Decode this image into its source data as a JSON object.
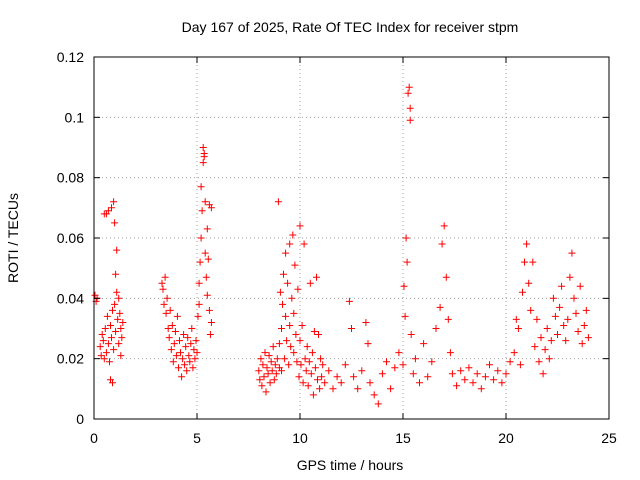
{
  "chart_data": {
    "type": "scatter",
    "title": "Day 167 of 2025, Rate Of TEC Index for receiver stpm",
    "xlabel": "GPS time / hours",
    "ylabel": "ROTI / TECUs",
    "xlim": [
      0,
      25
    ],
    "ylim": [
      0,
      0.12
    ],
    "x_ticks": [
      0,
      5,
      10,
      15,
      20,
      25
    ],
    "x_tick_labels": [
      "0",
      "5",
      "10",
      "15",
      "20",
      "25"
    ],
    "y_ticks": [
      0,
      0.02,
      0.04,
      0.06,
      0.08,
      0.1,
      0.12
    ],
    "y_tick_labels": [
      "0",
      "0.02",
      "0.04",
      "0.06",
      "0.08",
      "0.1",
      "0.12"
    ],
    "grid": true,
    "marker": "plus",
    "series_color": "#ff0000",
    "series": [
      {
        "name": "ROTI",
        "points": [
          [
            0.05,
            0.041
          ],
          [
            0.1,
            0.039
          ],
          [
            0.15,
            0.04
          ],
          [
            0.3,
            0.024
          ],
          [
            0.35,
            0.021
          ],
          [
            0.4,
            0.028
          ],
          [
            0.45,
            0.026
          ],
          [
            0.5,
            0.02
          ],
          [
            0.5,
            0.068
          ],
          [
            0.55,
            0.03
          ],
          [
            0.6,
            0.022
          ],
          [
            0.6,
            0.068
          ],
          [
            0.65,
            0.034
          ],
          [
            0.7,
            0.025
          ],
          [
            0.7,
            0.069
          ],
          [
            0.75,
            0.019
          ],
          [
            0.8,
            0.031
          ],
          [
            0.8,
            0.013
          ],
          [
            0.85,
            0.027
          ],
          [
            0.85,
            0.07
          ],
          [
            0.9,
            0.036
          ],
          [
            0.9,
            0.012
          ],
          [
            0.95,
            0.023
          ],
          [
            0.95,
            0.072
          ],
          [
            1.0,
            0.038
          ],
          [
            1.0,
            0.065
          ],
          [
            1.05,
            0.029
          ],
          [
            1.05,
            0.048
          ],
          [
            1.1,
            0.042
          ],
          [
            1.1,
            0.056
          ],
          [
            1.15,
            0.033
          ],
          [
            1.2,
            0.025
          ],
          [
            1.2,
            0.04
          ],
          [
            1.25,
            0.035
          ],
          [
            1.3,
            0.03
          ],
          [
            1.3,
            0.021
          ],
          [
            1.35,
            0.027
          ],
          [
            1.4,
            0.032
          ],
          [
            3.3,
            0.045
          ],
          [
            3.35,
            0.043
          ],
          [
            3.4,
            0.038
          ],
          [
            3.45,
            0.047
          ],
          [
            3.5,
            0.035
          ],
          [
            3.55,
            0.04
          ],
          [
            3.6,
            0.03
          ],
          [
            3.65,
            0.027
          ],
          [
            3.7,
            0.036
          ],
          [
            3.75,
            0.023
          ],
          [
            3.8,
            0.031
          ],
          [
            3.85,
            0.019
          ],
          [
            3.9,
            0.025
          ],
          [
            3.95,
            0.029
          ],
          [
            4.0,
            0.021
          ],
          [
            4.05,
            0.034
          ],
          [
            4.1,
            0.017
          ],
          [
            4.15,
            0.026
          ],
          [
            4.2,
            0.022
          ],
          [
            4.25,
            0.014
          ],
          [
            4.3,
            0.02
          ],
          [
            4.35,
            0.028
          ],
          [
            4.4,
            0.018
          ],
          [
            4.45,
            0.024
          ],
          [
            4.5,
            0.016
          ],
          [
            4.55,
            0.027
          ],
          [
            4.6,
            0.021
          ],
          [
            4.65,
            0.019
          ],
          [
            4.7,
            0.025
          ],
          [
            4.75,
            0.03
          ],
          [
            4.8,
            0.017
          ],
          [
            4.85,
            0.023
          ],
          [
            4.9,
            0.02
          ],
          [
            4.95,
            0.026
          ],
          [
            5.0,
            0.022
          ],
          [
            5.05,
            0.034
          ],
          [
            5.1,
            0.045
          ],
          [
            5.1,
            0.038
          ],
          [
            5.15,
            0.052
          ],
          [
            5.2,
            0.06
          ],
          [
            5.2,
            0.077
          ],
          [
            5.25,
            0.069
          ],
          [
            5.3,
            0.085
          ],
          [
            5.3,
            0.09
          ],
          [
            5.35,
            0.087
          ],
          [
            5.35,
            0.088
          ],
          [
            5.4,
            0.072
          ],
          [
            5.4,
            0.055
          ],
          [
            5.45,
            0.047
          ],
          [
            5.5,
            0.041
          ],
          [
            5.5,
            0.063
          ],
          [
            5.55,
            0.053
          ],
          [
            5.6,
            0.036
          ],
          [
            5.6,
            0.071
          ],
          [
            5.65,
            0.028
          ],
          [
            5.7,
            0.07
          ],
          [
            5.7,
            0.032
          ],
          [
            8.0,
            0.016
          ],
          [
            8.05,
            0.013
          ],
          [
            8.1,
            0.02
          ],
          [
            8.15,
            0.011
          ],
          [
            8.2,
            0.018
          ],
          [
            8.25,
            0.014
          ],
          [
            8.3,
            0.022
          ],
          [
            8.35,
            0.009
          ],
          [
            8.4,
            0.017
          ],
          [
            8.45,
            0.015
          ],
          [
            8.5,
            0.021
          ],
          [
            8.55,
            0.012
          ],
          [
            8.6,
            0.019
          ],
          [
            8.65,
            0.016
          ],
          [
            8.7,
            0.024
          ],
          [
            8.75,
            0.013
          ],
          [
            8.8,
            0.018
          ],
          [
            8.85,
            0.015
          ],
          [
            8.9,
            0.02
          ],
          [
            8.95,
            0.072
          ],
          [
            9.0,
            0.017
          ],
          [
            9.0,
            0.025
          ],
          [
            9.05,
            0.042
          ],
          [
            9.1,
            0.016
          ],
          [
            9.1,
            0.03
          ],
          [
            9.15,
            0.038
          ],
          [
            9.2,
            0.048
          ],
          [
            9.25,
            0.02
          ],
          [
            9.3,
            0.055
          ],
          [
            9.3,
            0.034
          ],
          [
            9.35,
            0.026
          ],
          [
            9.4,
            0.045
          ],
          [
            9.45,
            0.018
          ],
          [
            9.5,
            0.058
          ],
          [
            9.5,
            0.031
          ],
          [
            9.55,
            0.024
          ],
          [
            9.6,
            0.04
          ],
          [
            9.65,
            0.061
          ],
          [
            9.7,
            0.022
          ],
          [
            9.7,
            0.035
          ],
          [
            9.75,
            0.051
          ],
          [
            9.8,
            0.028
          ],
          [
            9.85,
            0.019
          ],
          [
            9.9,
            0.043
          ],
          [
            9.95,
            0.014
          ],
          [
            10.0,
            0.026
          ],
          [
            10.0,
            0.064
          ],
          [
            10.05,
            0.018
          ],
          [
            10.1,
            0.031
          ],
          [
            10.15,
            0.012
          ],
          [
            10.2,
            0.058
          ],
          [
            10.25,
            0.02
          ],
          [
            10.3,
            0.016
          ],
          [
            10.35,
            0.024
          ],
          [
            10.4,
            0.011
          ],
          [
            10.45,
            0.019
          ],
          [
            10.5,
            0.045
          ],
          [
            10.55,
            0.015
          ],
          [
            10.6,
            0.022
          ],
          [
            10.65,
            0.008
          ],
          [
            10.7,
            0.029
          ],
          [
            10.75,
            0.017
          ],
          [
            10.8,
            0.047
          ],
          [
            10.85,
            0.013
          ],
          [
            10.9,
            0.028
          ],
          [
            10.95,
            0.01
          ],
          [
            11.0,
            0.02
          ],
          [
            11.05,
            0.014
          ],
          [
            11.1,
            0.018
          ],
          [
            11.2,
            0.012
          ],
          [
            11.4,
            0.016
          ],
          [
            11.6,
            0.01
          ],
          [
            11.8,
            0.014
          ],
          [
            12.0,
            0.012
          ],
          [
            12.2,
            0.018
          ],
          [
            12.4,
            0.039
          ],
          [
            12.5,
            0.03
          ],
          [
            12.6,
            0.014
          ],
          [
            12.8,
            0.01
          ],
          [
            13.0,
            0.016
          ],
          [
            13.2,
            0.032
          ],
          [
            13.3,
            0.025
          ],
          [
            13.4,
            0.012
          ],
          [
            13.6,
            0.008
          ],
          [
            13.8,
            0.005
          ],
          [
            14.0,
            0.015
          ],
          [
            14.2,
            0.019
          ],
          [
            14.4,
            0.01
          ],
          [
            14.6,
            0.017
          ],
          [
            14.8,
            0.022
          ],
          [
            15.0,
            0.018
          ],
          [
            15.05,
            0.044
          ],
          [
            15.1,
            0.034
          ],
          [
            15.15,
            0.06
          ],
          [
            15.2,
            0.052
          ],
          [
            15.25,
            0.108
          ],
          [
            15.3,
            0.11
          ],
          [
            15.35,
            0.103
          ],
          [
            15.35,
            0.099
          ],
          [
            15.4,
            0.028
          ],
          [
            15.5,
            0.015
          ],
          [
            15.6,
            0.02
          ],
          [
            15.8,
            0.012
          ],
          [
            16.0,
            0.025
          ],
          [
            16.2,
            0.014
          ],
          [
            16.4,
            0.019
          ],
          [
            16.6,
            0.03
          ],
          [
            16.8,
            0.037
          ],
          [
            16.9,
            0.058
          ],
          [
            17.0,
            0.064
          ],
          [
            17.1,
            0.047
          ],
          [
            17.2,
            0.033
          ],
          [
            17.3,
            0.022
          ],
          [
            17.4,
            0.015
          ],
          [
            17.6,
            0.011
          ],
          [
            17.8,
            0.016
          ],
          [
            18.0,
            0.013
          ],
          [
            18.2,
            0.017
          ],
          [
            18.4,
            0.012
          ],
          [
            18.6,
            0.015
          ],
          [
            18.8,
            0.01
          ],
          [
            19.0,
            0.014
          ],
          [
            19.2,
            0.018
          ],
          [
            19.4,
            0.013
          ],
          [
            19.6,
            0.016
          ],
          [
            19.8,
            0.012
          ],
          [
            20.0,
            0.015
          ],
          [
            20.2,
            0.019
          ],
          [
            20.4,
            0.022
          ],
          [
            20.5,
            0.033
          ],
          [
            20.6,
            0.03
          ],
          [
            20.7,
            0.018
          ],
          [
            20.8,
            0.042
          ],
          [
            20.9,
            0.052
          ],
          [
            21.0,
            0.058
          ],
          [
            21.1,
            0.045
          ],
          [
            21.2,
            0.036
          ],
          [
            21.3,
            0.052
          ],
          [
            21.4,
            0.024
          ],
          [
            21.5,
            0.033
          ],
          [
            21.6,
            0.019
          ],
          [
            21.7,
            0.027
          ],
          [
            21.8,
            0.015
          ],
          [
            21.9,
            0.023
          ],
          [
            22.0,
            0.03
          ],
          [
            22.1,
            0.02
          ],
          [
            22.2,
            0.026
          ],
          [
            22.3,
            0.04
          ],
          [
            22.4,
            0.034
          ],
          [
            22.5,
            0.028
          ],
          [
            22.6,
            0.037
          ],
          [
            22.7,
            0.044
          ],
          [
            22.8,
            0.031
          ],
          [
            22.9,
            0.026
          ],
          [
            23.0,
            0.033
          ],
          [
            23.1,
            0.047
          ],
          [
            23.2,
            0.055
          ],
          [
            23.3,
            0.04
          ],
          [
            23.4,
            0.035
          ],
          [
            23.5,
            0.029
          ],
          [
            23.6,
            0.044
          ],
          [
            23.7,
            0.025
          ],
          [
            23.8,
            0.031
          ],
          [
            23.9,
            0.036
          ],
          [
            24.0,
            0.027
          ]
        ]
      }
    ]
  }
}
